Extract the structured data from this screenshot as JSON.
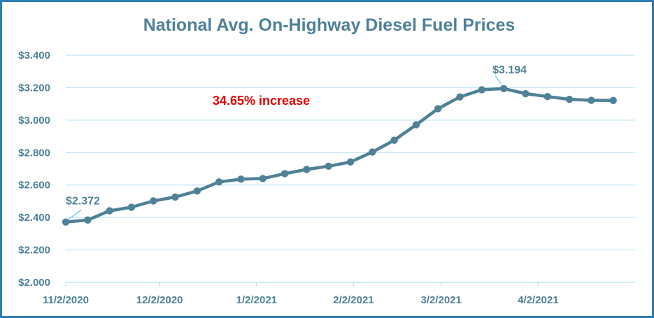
{
  "chart_data": {
    "type": "line",
    "title": "National Avg. On-Highway Diesel Fuel Prices",
    "xlabel": "",
    "ylabel": "",
    "ylim": [
      2.0,
      3.4
    ],
    "y_ticks": [
      "$2.000",
      "$2.200",
      "$2.400",
      "$2.600",
      "$2.800",
      "$3.000",
      "$3.200",
      "$3.400"
    ],
    "x_ticks": [
      "11/2/2020",
      "12/2/2020",
      "1/2/2021",
      "2/2/2021",
      "3/2/2021",
      "4/2/2021"
    ],
    "x_range": [
      "11/2/2020",
      "5/3/2021"
    ],
    "grid": true,
    "line_color": "#4f8197",
    "series": [
      {
        "x": [
          "11/2/2020",
          "11/9/2020",
          "11/16/2020",
          "11/23/2020",
          "11/30/2020",
          "12/7/2020",
          "12/14/2020",
          "12/21/2020",
          "12/28/2020",
          "1/4/2021",
          "1/11/2021",
          "1/18/2021",
          "1/25/2021",
          "2/1/2021",
          "2/8/2021",
          "2/15/2021",
          "2/22/2021",
          "3/1/2021",
          "3/8/2021",
          "3/15/2021",
          "3/22/2021",
          "3/29/2021",
          "4/5/2021",
          "4/12/2021",
          "4/19/2021",
          "4/26/2021"
        ],
        "values": [
          2.372,
          2.384,
          2.441,
          2.463,
          2.502,
          2.526,
          2.563,
          2.619,
          2.636,
          2.64,
          2.67,
          2.696,
          2.716,
          2.742,
          2.803,
          2.876,
          2.971,
          3.07,
          3.143,
          3.187,
          3.194,
          3.163,
          3.145,
          3.128,
          3.122,
          3.121
        ]
      }
    ],
    "annotations": {
      "start_label": "$2.372",
      "peak_label": "$3.194",
      "increase_text": "34.65% increase",
      "increase_color": "#e00000",
      "leader_color": "#5bc3f0"
    }
  }
}
